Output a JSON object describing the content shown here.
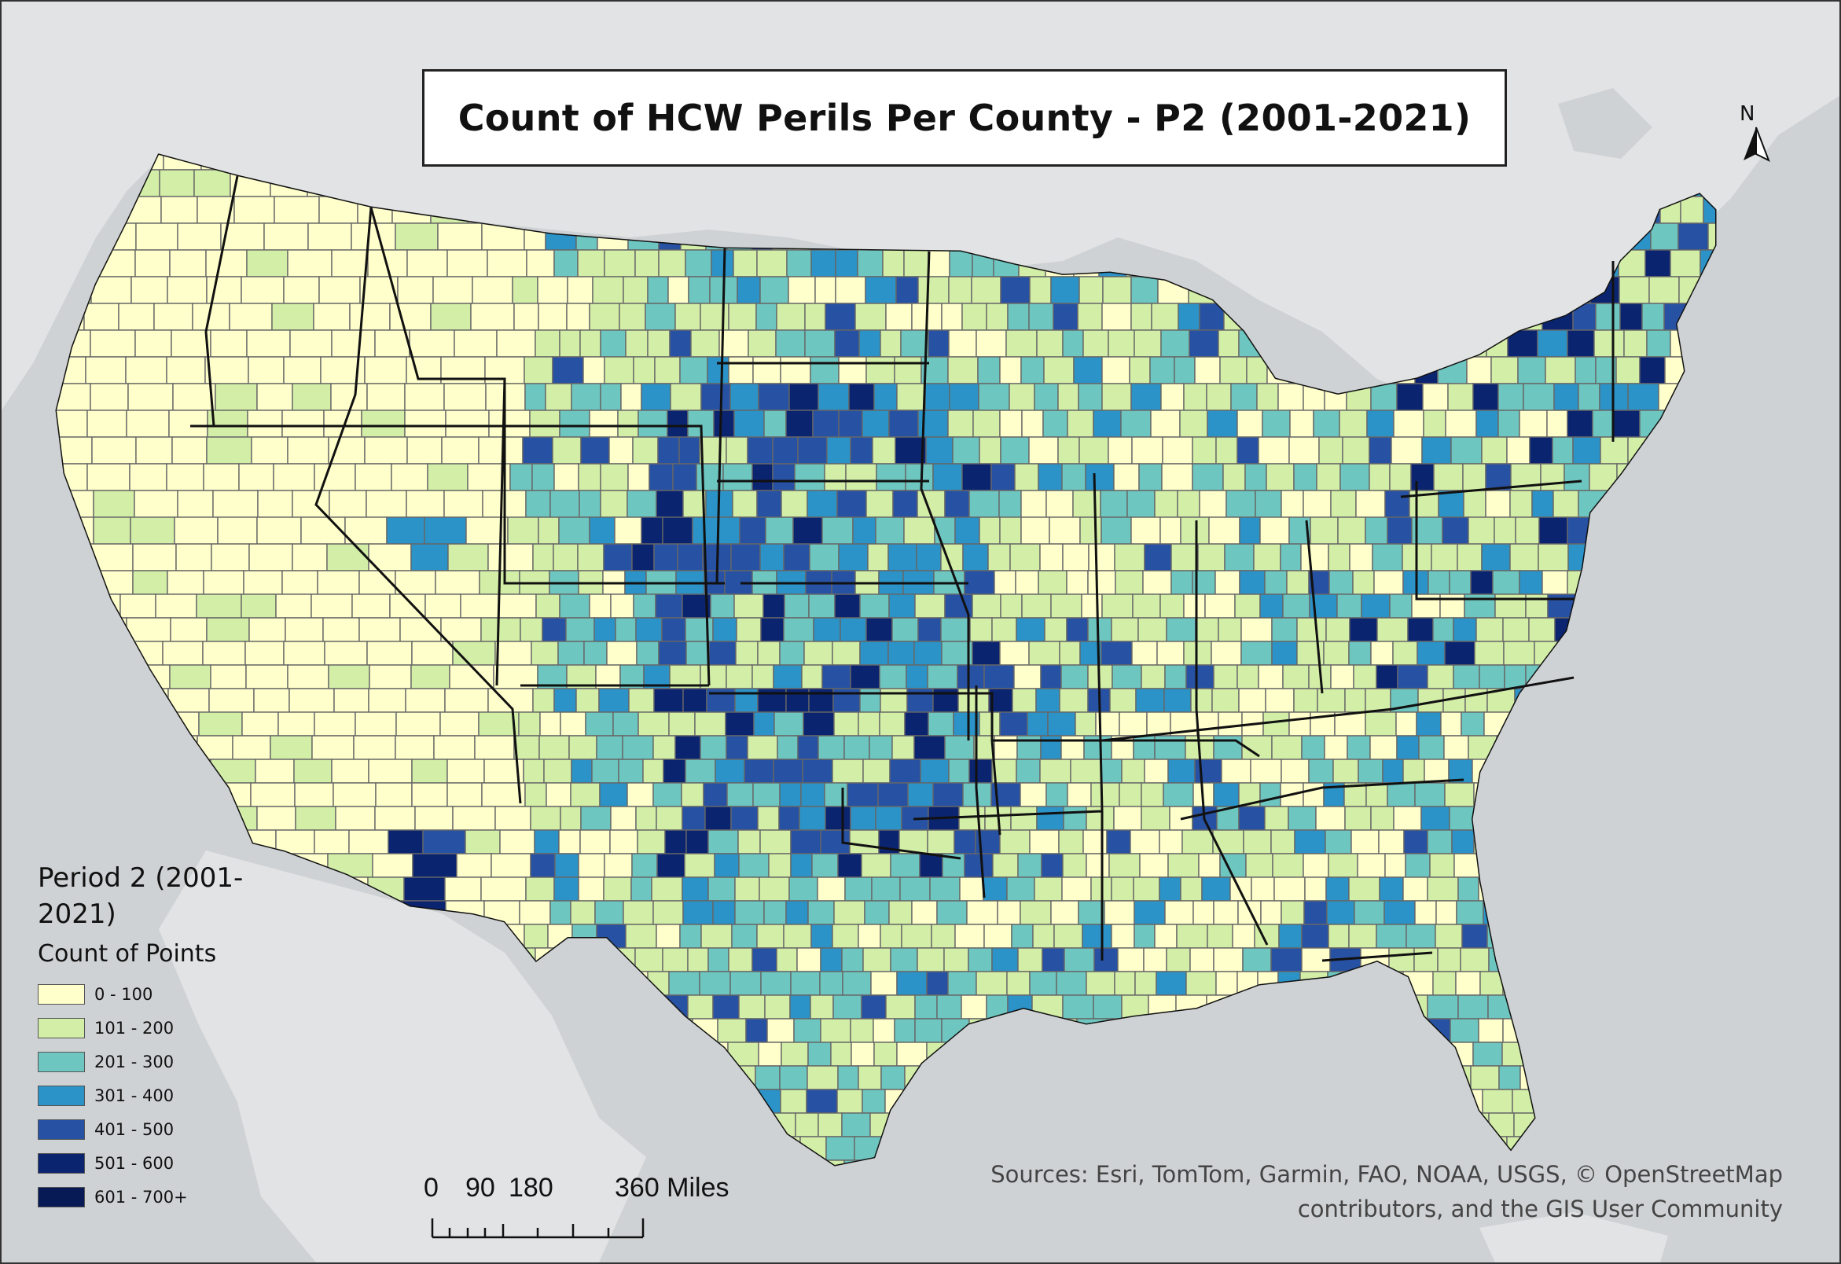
{
  "map": {
    "title": "Count of HCW Perils Per County - P2 (2001-2021)",
    "north_label": "N",
    "background_color": "#cfd2d4",
    "land_color": "#e6e6e6",
    "county_border_color": "#666666",
    "state_border_color": "#111111"
  },
  "legend": {
    "title": "Period 2 (2001-2021)",
    "subtitle": "Count of Points",
    "classes": [
      {
        "label": "0 - 100",
        "color": "#ffffcc"
      },
      {
        "label": "101 - 200",
        "color": "#d3eea7"
      },
      {
        "label": "201 - 300",
        "color": "#6ec6c0"
      },
      {
        "label": "301 - 400",
        "color": "#2b93c7"
      },
      {
        "label": "401 - 500",
        "color": "#2751a3"
      },
      {
        "label": "501 - 600",
        "color": "#0b2470"
      },
      {
        "label": "601 - 700+",
        "color": "#081a55"
      }
    ]
  },
  "scale_bar": {
    "labels": [
      "0",
      "90",
      "180",
      "360 Miles"
    ]
  },
  "credits": {
    "line1": "Sources: Esri, TomTom, Garmin, FAO, NOAA, USGS, © OpenStreetMap",
    "line2": "contributors, and the GIS User Community"
  }
}
